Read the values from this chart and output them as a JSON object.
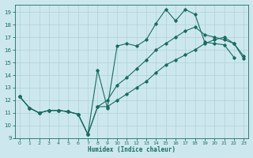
{
  "xlabel": "Humidex (Indice chaleur)",
  "bg_color": "#cce8ee",
  "line_color": "#1a6b60",
  "grid_color": "#b0d0d8",
  "xlim": [
    -0.5,
    23.5
  ],
  "ylim": [
    9,
    19.6
  ],
  "xticks": [
    0,
    1,
    2,
    3,
    4,
    5,
    6,
    7,
    8,
    9,
    10,
    11,
    12,
    13,
    14,
    15,
    16,
    17,
    18,
    19,
    20,
    21,
    22,
    23
  ],
  "yticks": [
    9,
    10,
    11,
    12,
    13,
    14,
    15,
    16,
    17,
    18,
    19
  ],
  "line1_x": [
    0,
    1,
    2,
    3,
    4,
    5,
    6,
    7,
    8,
    9,
    10,
    11,
    12,
    13,
    14,
    15,
    16,
    17,
    18,
    19,
    20,
    21,
    22
  ],
  "line1_y": [
    12.3,
    11.4,
    11.0,
    11.2,
    11.2,
    11.1,
    10.9,
    9.3,
    14.4,
    11.4,
    16.3,
    16.5,
    16.3,
    16.8,
    18.1,
    19.2,
    18.3,
    19.2,
    18.8,
    16.6,
    16.5,
    16.4,
    15.4
  ],
  "line2_x": [
    0,
    1,
    2,
    3,
    4,
    5,
    6,
    7,
    8,
    9,
    10,
    11,
    12,
    13,
    14,
    15,
    16,
    17,
    18,
    19,
    20,
    21,
    22,
    23
  ],
  "line2_y": [
    12.3,
    11.4,
    11.0,
    11.2,
    11.2,
    11.1,
    10.9,
    9.3,
    11.5,
    12.0,
    13.2,
    13.8,
    14.5,
    15.2,
    16.0,
    16.5,
    17.0,
    17.5,
    17.8,
    17.2,
    17.0,
    16.8,
    16.5,
    15.5
  ],
  "line3_x": [
    0,
    1,
    2,
    3,
    4,
    5,
    6,
    7,
    8,
    9,
    10,
    11,
    12,
    13,
    14,
    15,
    16,
    17,
    18,
    19,
    20,
    21,
    22,
    23
  ],
  "line3_y": [
    12.3,
    11.4,
    11.0,
    11.2,
    11.2,
    11.1,
    10.9,
    9.3,
    11.5,
    11.5,
    12.0,
    12.5,
    13.0,
    13.5,
    14.2,
    14.8,
    15.2,
    15.6,
    16.0,
    16.5,
    16.8,
    17.0,
    16.5,
    15.3
  ]
}
